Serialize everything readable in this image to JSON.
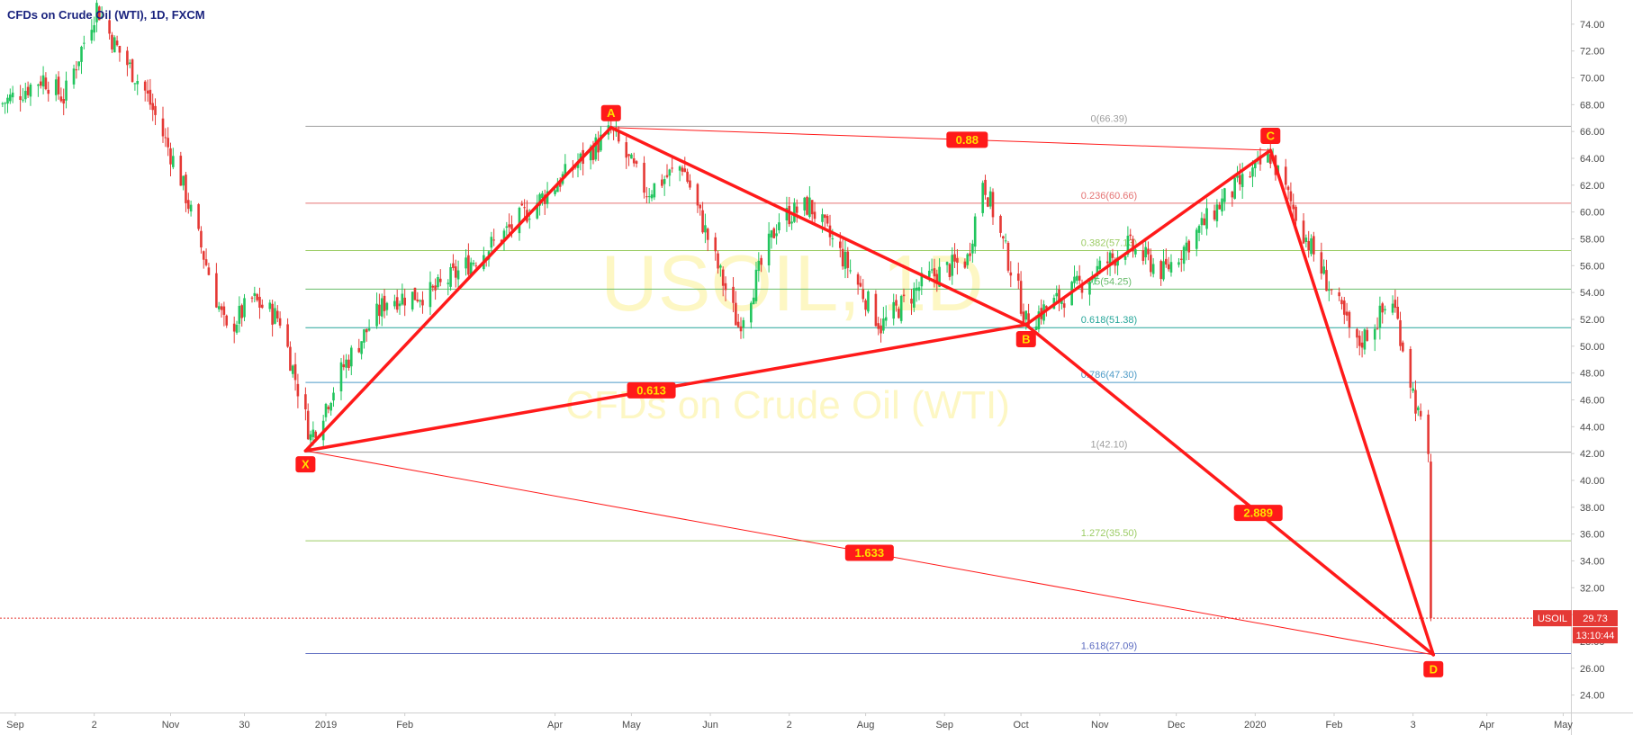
{
  "header": {
    "symbol_title": "CFDs on Crude Oil (WTI), 1D, FXCM"
  },
  "watermark": {
    "line1": "USOIL, 1D",
    "line2": "CFDs on Crude Oil (WTI)"
  },
  "price_tag": {
    "symbol": "USOIL",
    "price": "29.73",
    "countdown": "13:10:44"
  },
  "colors": {
    "bull": "#22c55e",
    "bear": "#e53935",
    "pattern": "#ff1a1a",
    "label_bg": "#ff1a1a",
    "label_text": "#ffe000",
    "axis_text": "#4a4a4a",
    "axis_line": "#cfcfcf"
  },
  "chart_data": {
    "type": "candlestick",
    "title": "CFDs on Crude Oil (WTI), 1D, FXCM",
    "y_axis": {
      "ylim": [
        22.7,
        75.8
      ],
      "ticks": [
        24,
        26,
        28,
        30,
        32,
        34,
        36,
        38,
        40,
        42,
        44,
        46,
        48,
        50,
        52,
        54,
        56,
        58,
        60,
        62,
        64,
        66,
        68,
        70,
        72,
        74
      ],
      "tick_labels": [
        "24.00",
        "26.00",
        "28.00",
        "30.00",
        "32.00",
        "34.00",
        "36.00",
        "38.00",
        "40.00",
        "42.00",
        "44.00",
        "46.00",
        "48.00",
        "50.00",
        "52.00",
        "54.00",
        "56.00",
        "58.00",
        "60.00",
        "62.00",
        "64.00",
        "66.00",
        "68.00",
        "70.00",
        "72.00",
        "74.00"
      ]
    },
    "x_axis": {
      "start": "2018-08-26",
      "end": "2020-05-04",
      "ticks": [
        {
          "date": "2018-09-01",
          "label": "Sep"
        },
        {
          "date": "2018-10-02",
          "label": "2"
        },
        {
          "date": "2018-11-01",
          "label": "Nov"
        },
        {
          "date": "2018-11-30",
          "label": "30"
        },
        {
          "date": "2019-01-01",
          "label": "2019"
        },
        {
          "date": "2019-02-01",
          "label": "Feb"
        },
        {
          "date": "2019-04-01",
          "label": "Apr"
        },
        {
          "date": "2019-05-01",
          "label": "May"
        },
        {
          "date": "2019-06-01",
          "label": "Jun"
        },
        {
          "date": "2019-07-02",
          "label": "2"
        },
        {
          "date": "2019-08-01",
          "label": "Aug"
        },
        {
          "date": "2019-09-01",
          "label": "Sep"
        },
        {
          "date": "2019-10-01",
          "label": "Oct"
        },
        {
          "date": "2019-11-01",
          "label": "Nov"
        },
        {
          "date": "2019-12-01",
          "label": "Dec"
        },
        {
          "date": "2020-01-01",
          "label": "2020"
        },
        {
          "date": "2020-02-01",
          "label": "Feb"
        },
        {
          "date": "2020-03-03",
          "label": "3"
        },
        {
          "date": "2020-04-01",
          "label": "Apr"
        },
        {
          "date": "2020-05-01",
          "label": "May"
        }
      ]
    },
    "price_path": [
      {
        "date": "2018-08-26",
        "price": 68.0
      },
      {
        "date": "2018-09-12",
        "price": 70.0
      },
      {
        "date": "2018-09-20",
        "price": 68.5
      },
      {
        "date": "2018-10-03",
        "price": 75.3
      },
      {
        "date": "2018-10-10",
        "price": 72.5
      },
      {
        "date": "2018-10-22",
        "price": 69.0
      },
      {
        "date": "2018-11-05",
        "price": 62.5
      },
      {
        "date": "2018-11-23",
        "price": 51.0
      },
      {
        "date": "2018-12-03",
        "price": 53.5
      },
      {
        "date": "2018-12-14",
        "price": 52.0
      },
      {
        "date": "2018-12-26",
        "price": 43.2
      },
      {
        "date": "2019-01-08",
        "price": 48.5
      },
      {
        "date": "2019-01-25",
        "price": 53.5
      },
      {
        "date": "2019-02-12",
        "price": 54.0
      },
      {
        "date": "2019-03-10",
        "price": 58.0
      },
      {
        "date": "2019-04-01",
        "price": 62.0
      },
      {
        "date": "2019-04-23",
        "price": 66.0
      },
      {
        "date": "2019-05-07",
        "price": 61.5
      },
      {
        "date": "2019-05-21",
        "price": 63.5
      },
      {
        "date": "2019-06-12",
        "price": 51.5
      },
      {
        "date": "2019-06-28",
        "price": 59.5
      },
      {
        "date": "2019-07-10",
        "price": 60.5
      },
      {
        "date": "2019-07-25",
        "price": 56.0
      },
      {
        "date": "2019-08-07",
        "price": 51.5
      },
      {
        "date": "2019-08-25",
        "price": 55.0
      },
      {
        "date": "2019-09-10",
        "price": 56.5
      },
      {
        "date": "2019-09-16",
        "price": 62.5
      },
      {
        "date": "2019-09-30",
        "price": 54.0
      },
      {
        "date": "2019-10-03",
        "price": 51.8
      },
      {
        "date": "2019-10-20",
        "price": 54.0
      },
      {
        "date": "2019-11-12",
        "price": 57.5
      },
      {
        "date": "2019-11-26",
        "price": 55.5
      },
      {
        "date": "2019-12-20",
        "price": 61.0
      },
      {
        "date": "2020-01-07",
        "price": 64.2
      },
      {
        "date": "2020-01-20",
        "price": 58.5
      },
      {
        "date": "2020-02-10",
        "price": 50.0
      },
      {
        "date": "2020-02-24",
        "price": 53.5
      },
      {
        "date": "2020-03-06",
        "price": 44.0
      },
      {
        "date": "2020-03-09",
        "price": 41.5
      },
      {
        "date": "2020-03-10",
        "price": 29.73
      }
    ],
    "fib_levels": [
      {
        "label": "0(66.39)",
        "price": 66.39,
        "color": "#9e9e9e"
      },
      {
        "label": "0.236(60.66)",
        "price": 60.66,
        "color": "#e57373"
      },
      {
        "label": "0.382(57.13)",
        "price": 57.13,
        "color": "#9ccc65"
      },
      {
        "label": "0.5(54.25)",
        "price": 54.25,
        "color": "#66bb6a"
      },
      {
        "label": "0.618(51.38)",
        "price": 51.38,
        "color": "#26a69a"
      },
      {
        "label": "0.786(47.30)",
        "price": 47.3,
        "color": "#4e9bc7"
      },
      {
        "label": "1(42.10)",
        "price": 42.1,
        "color": "#9e9e9e"
      },
      {
        "label": "1.272(35.50)",
        "price": 35.5,
        "color": "#9ccc65"
      },
      {
        "label": "1.618(27.09)",
        "price": 27.09,
        "color": "#5c6bc0"
      }
    ],
    "fib_start_date": "2018-12-24",
    "pattern_points": [
      {
        "name": "X",
        "date": "2018-12-24",
        "price": 42.2
      },
      {
        "name": "A",
        "date": "2019-04-23",
        "price": 66.3
      },
      {
        "name": "B",
        "date": "2019-10-03",
        "price": 51.6
      },
      {
        "name": "C",
        "date": "2020-01-07",
        "price": 64.6
      },
      {
        "name": "D",
        "date": "2020-03-11",
        "price": 27.0
      }
    ],
    "ratios": [
      {
        "label": "0.88",
        "from": "A",
        "to": "C"
      },
      {
        "label": "0.613",
        "from": "X",
        "to": "B"
      },
      {
        "label": "2.889",
        "from": "B",
        "to": "D"
      },
      {
        "label": "1.633",
        "from": "X",
        "to": "D"
      }
    ],
    "last_price": 29.73
  }
}
